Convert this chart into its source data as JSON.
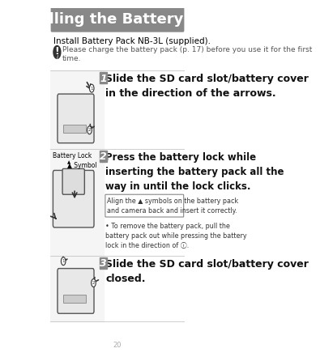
{
  "page_bg": "#ffffff",
  "header_bg": "#888888",
  "header_text": "Installing the Battery Pack",
  "header_text_color": "#ffffff",
  "header_font_size": 13,
  "subtitle": "Install Battery Pack NB-3L (supplied).",
  "subtitle_font_size": 7.5,
  "note_text": "Please charge the battery pack (p. 17) before you use it for the first\ntime.",
  "note_font_size": 6.5,
  "divider_color": "#888888",
  "step_num_bg": "#888888",
  "step_num_color": "#ffffff",
  "steps": [
    {
      "num": "1",
      "text": "Slide the SD card slot/battery cover\nin the direction of the arrows."
    },
    {
      "num": "2",
      "text": "Press the battery lock while\ninserting the battery pack all the\nway in until the lock clicks."
    },
    {
      "num": "3",
      "text": "Slide the SD card slot/battery cover\nclosed."
    }
  ],
  "step2_note_text": "Align the ▲ symbols on the battery pack\nand camera back and insert it correctly.",
  "step2_bullet": "To remove the battery pack, pull the\nbattery pack out while pressing the battery\nlock in the direction of ⓘ.",
  "step_text_font_size": 8,
  "step_num_font_size": 9,
  "image_area_bg": "#f0f0f0",
  "step2_label1": "Battery Lock",
  "step2_label2": "▲ Symbol",
  "box_border_color": "#888888"
}
